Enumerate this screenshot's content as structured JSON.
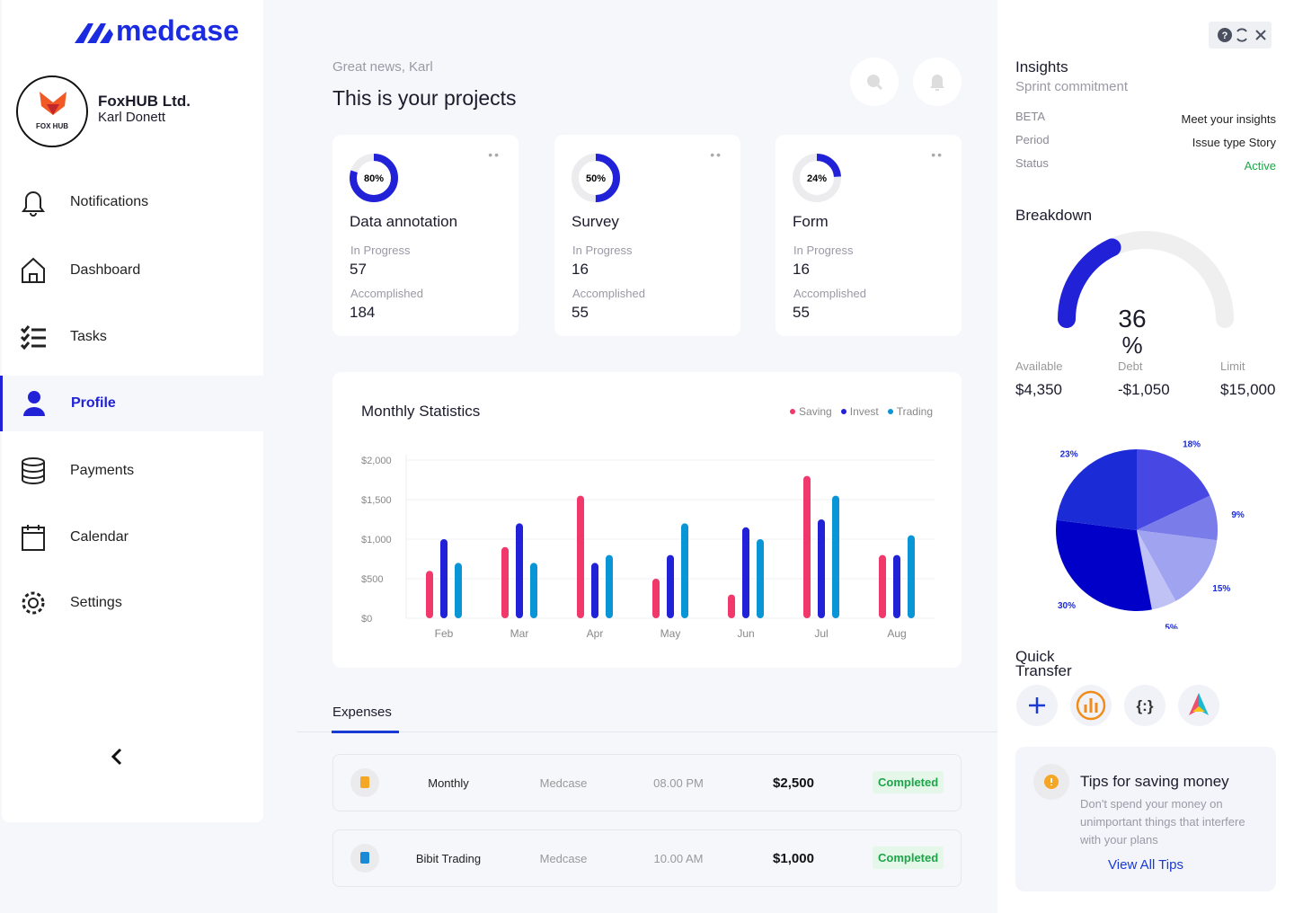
{
  "brand": "medcase",
  "account": {
    "logo": "FOX HUB",
    "company": "FoxHUB Ltd.",
    "user": "Karl Donett"
  },
  "nav": [
    "Notifications",
    "Dashboard",
    "Tasks",
    "Profile",
    "Payments",
    "Calendar",
    "Settings"
  ],
  "header": {
    "greeting": "Great news, Karl",
    "title": "This is your projects"
  },
  "projects": [
    {
      "name": "Data annotation",
      "progress": 80,
      "progress_label": "80%",
      "in_progress_label": "In Progress",
      "in_progress": 57,
      "accomplished_label": "Accomplished",
      "accomplished": 184
    },
    {
      "name": "Survey",
      "progress": 50,
      "progress_label": "50%",
      "in_progress_label": "In Progress",
      "in_progress": 16,
      "accomplished_label": "Accomplished",
      "accomplished": 55
    },
    {
      "name": "Form",
      "progress": 24,
      "progress_label": "24%",
      "in_progress_label": "In Progress",
      "in_progress": 16,
      "accomplished_label": "Accomplished",
      "accomplished": 55
    }
  ],
  "chart_data": [
    {
      "type": "bar",
      "title": "Monthly Statistics",
      "categories": [
        "Feb",
        "Mar",
        "Apr",
        "May",
        "Jun",
        "Jul",
        "Aug"
      ],
      "series": [
        {
          "name": "Saving",
          "color": "#f0386b",
          "values": [
            600,
            900,
            1550,
            500,
            300,
            1800,
            800
          ]
        },
        {
          "name": "Invest",
          "color": "#2121d8",
          "values": [
            1000,
            1200,
            700,
            800,
            1150,
            1250,
            800
          ]
        },
        {
          "name": "Trading",
          "color": "#0a96d6",
          "values": [
            700,
            700,
            800,
            1200,
            1000,
            1550,
            1050
          ]
        }
      ],
      "ylim": [
        0,
        2000
      ],
      "yticks": [
        {
          "value": 0,
          "label": "$0"
        },
        {
          "value": 500,
          "label": "$500"
        },
        {
          "value": 1000,
          "label": "$1,000"
        },
        {
          "value": 1500,
          "label": "$1,500"
        },
        {
          "value": 2000,
          "label": "$2,000"
        }
      ],
      "grid": true,
      "legend": "top-right"
    },
    {
      "type": "pie",
      "values": [
        18,
        9,
        15,
        5,
        30,
        23
      ],
      "value_labels": [
        "18%",
        "9%",
        "15%",
        "5%",
        "30%",
        "23%"
      ],
      "colors": [
        "#4747e3",
        "#7a7ce9",
        "#9fa3f0",
        "#c0c2f6",
        "#0000c8",
        "#1b2bd6"
      ]
    }
  ],
  "expenses": {
    "tab": "Expenses",
    "rows": [
      [
        "Monthly",
        "Medcase",
        "08.00 PM",
        "$2,500",
        "Completed"
      ],
      [
        "Bibit Trading",
        "Medcase",
        "10.00 AM",
        "$1,000",
        "Completed"
      ]
    ]
  },
  "insights": {
    "title": "Insights",
    "subtitle": "Sprint commitment",
    "rows": [
      [
        "BETA",
        "Meet your insights"
      ],
      [
        "Period",
        "Issue type Story"
      ],
      [
        "Status",
        "Active"
      ]
    ]
  },
  "breakdown": {
    "title": "Breakdown",
    "percent": 36,
    "percent_unit": "%",
    "stats": [
      [
        "Available",
        "$4,350"
      ],
      [
        "Debt",
        "-$1,050"
      ],
      [
        "Limit",
        "$15,000"
      ]
    ]
  },
  "quick_transfer": {
    "title": "Quick Transfer"
  },
  "tips": {
    "title": "Tips for saving money",
    "text": "Don't spend your money on unimportant things that interfere with your plans",
    "link": "View All Tips"
  }
}
